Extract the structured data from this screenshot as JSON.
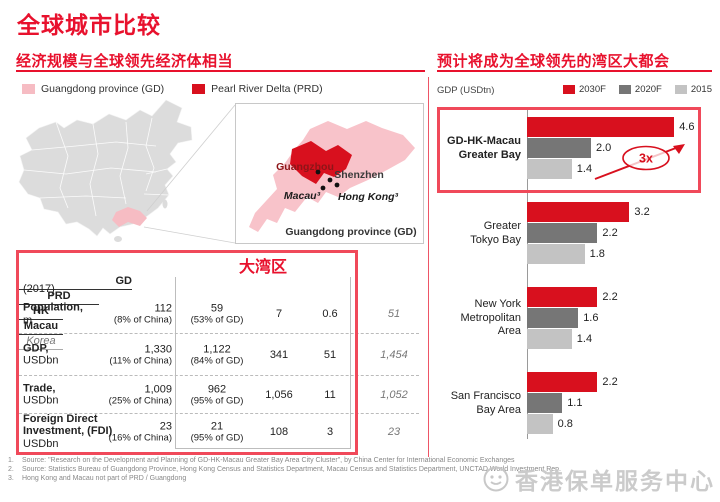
{
  "title": "全球城市比较",
  "left": {
    "header": "经济规模与全球领先经济体相当",
    "legend": [
      {
        "label": "Guangdong province (GD)",
        "color": "#f6bcc3"
      },
      {
        "label": "Pearl River Delta (PRD)",
        "color": "#d8101e"
      }
    ],
    "map": {
      "cities": {
        "guangzhou": "Guangzhou",
        "shenzhen": "Shenzhen",
        "macau": "Macau³",
        "hongkong": "Hong Kong³"
      },
      "inset_caption": "Guangdong province (GD)"
    },
    "table": {
      "group_label": "大湾区",
      "year": "(2017)",
      "columns": [
        "GD",
        "PRD",
        "HK",
        "Macau",
        "Korea"
      ],
      "rows": [
        {
          "label": "Population,",
          "unit": "m",
          "gd": "112",
          "gd_sub": "(8% of China)",
          "prd": "59",
          "prd_sub": "(53% of GD)",
          "hk": "7",
          "macau": "0.6",
          "korea": "51"
        },
        {
          "label": "GDP,",
          "unit": "USDbn",
          "gd": "1,330",
          "gd_sub": "(11% of China)",
          "prd": "1,122",
          "prd_sub": "(84% of GD)",
          "hk": "341",
          "macau": "51",
          "korea": "1,454"
        },
        {
          "label": "Trade,",
          "unit": "USDbn",
          "gd": "1,009",
          "gd_sub": "(25% of China)",
          "prd": "962",
          "prd_sub": "(95% of GD)",
          "hk": "1,056",
          "macau": "11",
          "korea": "1,052"
        },
        {
          "label": "Foreign Direct\nInvestment, (FDI)",
          "unit": "USDbn",
          "gd": "23",
          "gd_sub": "(16% of China)",
          "prd": "21",
          "prd_sub": "(95% of GD)",
          "hk": "108",
          "macau": "3",
          "korea": "23"
        }
      ]
    }
  },
  "right": {
    "header": "预计将成为全球领先的湾区大都会",
    "axis_label": "GDP (USDtn)",
    "legend": [
      {
        "label": "2030F",
        "color": "#d8101e"
      },
      {
        "label": "2020F",
        "color": "#767676"
      },
      {
        "label": "2015",
        "color": "#c3c3c3"
      }
    ]
  },
  "chart_data": {
    "type": "bar",
    "orientation": "horizontal",
    "title": "预计将成为全球领先的湾区大都会",
    "xlabel": "GDP (USDtn)",
    "xlim": [
      0,
      5
    ],
    "grid": false,
    "legend_position": "top-right",
    "categories": [
      "GD-HK-Macau Greater Bay",
      "Greater Tokyo Bay",
      "New York Metropolitan Area",
      "San Francisco Bay Area"
    ],
    "category_lines": [
      [
        "GD-HK-Macau",
        "Greater Bay"
      ],
      [
        "Greater",
        "Tokyo Bay"
      ],
      [
        "New York",
        "Metropolitan",
        "Area"
      ],
      [
        "San Francisco",
        "Bay Area"
      ]
    ],
    "series": [
      {
        "name": "2030F",
        "values": [
          4.6,
          3.2,
          2.2,
          2.2
        ]
      },
      {
        "name": "2020F",
        "values": [
          2.0,
          2.2,
          1.6,
          1.1
        ]
      },
      {
        "name": "2015",
        "values": [
          1.4,
          1.8,
          1.4,
          0.8
        ]
      }
    ],
    "annotation": "3x",
    "highlight_category": "GD-HK-Macau Greater Bay"
  },
  "footnotes": [
    "Source: \"Research on the Development and Planning of GD-HK-Macau Greater Bay Area City Cluster\", by China Center for International Economic Exchanges",
    "Source: Statistics Bureau of Guangdong Province, Hong Kong Census and Statistics Department, Macau Census and Statistics Department, UNCTAD World Investment Rep.",
    "Hong Kong and Macau not part of PRD / Guangdong"
  ],
  "watermark": "香港保单服务中心",
  "colors": {
    "title_red": "#e8112d",
    "bar_red": "#d8101e",
    "box_red": "#f0495a",
    "gd_pink": "#f6bcc3",
    "bar_dark_gray": "#767676",
    "bar_light_gray": "#c3c3c3"
  }
}
